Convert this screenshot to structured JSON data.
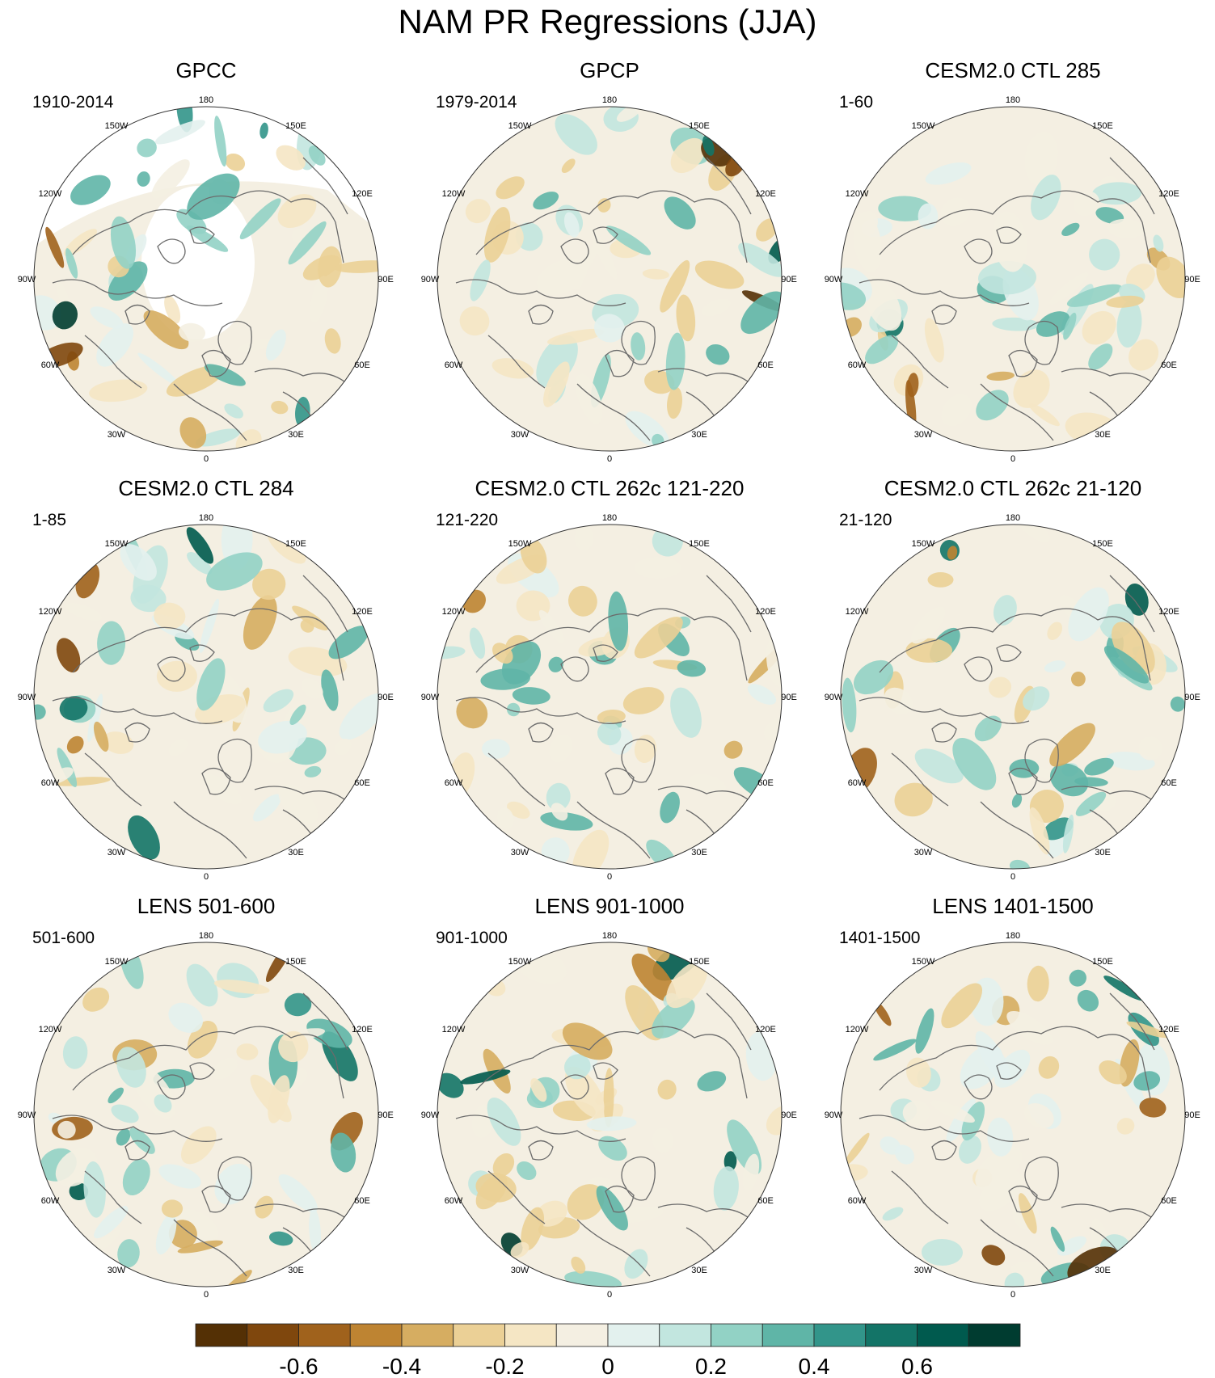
{
  "title": "NAM PR Regressions (JJA)",
  "panels": [
    {
      "title": "GPCC",
      "period": "1910-2014",
      "seed": 3,
      "land_only": true
    },
    {
      "title": "GPCP",
      "period": "1979-2014",
      "seed": 11,
      "land_only": false
    },
    {
      "title": "CESM2.0 CTL 285",
      "period": "1-60",
      "seed": 23,
      "land_only": false
    },
    {
      "title": "CESM2.0 CTL 284",
      "period": "1-85",
      "seed": 37,
      "land_only": false
    },
    {
      "title": "CESM2.0 CTL 262c 121-220",
      "period": "121-220",
      "seed": 41,
      "land_only": false
    },
    {
      "title": "CESM2.0 CTL 262c 21-120",
      "period": "21-120",
      "seed": 53,
      "land_only": false
    },
    {
      "title": "LENS 501-600",
      "period": "501-600",
      "seed": 67,
      "land_only": false
    },
    {
      "title": "LENS 901-1000",
      "period": "901-1000",
      "seed": 71,
      "land_only": false
    },
    {
      "title": "LENS 1401-1500",
      "period": "1401-1500",
      "seed": 89,
      "land_only": false
    }
  ],
  "longitude_labels": [
    "180",
    "150E",
    "120E",
    "90E",
    "60E",
    "30E",
    "0",
    "30W",
    "60W",
    "90W",
    "120W",
    "150W"
  ],
  "colorbar": {
    "colors": [
      "#543005",
      "#7f470d",
      "#a0621c",
      "#be8432",
      "#d6ad61",
      "#ebd096",
      "#f5e6c4",
      "#f4efe2",
      "#e3f1ee",
      "#c2e6df",
      "#92d2c5",
      "#5fb5a7",
      "#32958a",
      "#137467",
      "#005a4e",
      "#003c30"
    ],
    "tick_labels": [
      "-0.6",
      "-0.4",
      "-0.2",
      "0",
      "0.2",
      "0.4",
      "0.6"
    ],
    "tick_values": [
      -0.6,
      -0.4,
      -0.2,
      0,
      0.2,
      0.4,
      0.6
    ],
    "min": -0.8,
    "max": 0.8
  }
}
